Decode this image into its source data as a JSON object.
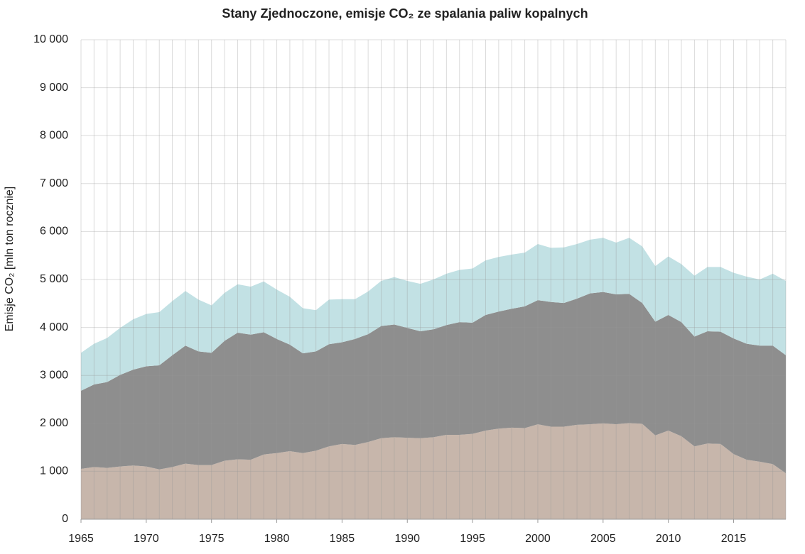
{
  "chart_data": {
    "type": "stacked_area",
    "title": "Stany Zjednoczone, emisje CO₂ ze spalania paliw kopalnych",
    "y_label": "Emisje CO₂ [mln ton rocznie]",
    "x": [
      1965,
      1966,
      1967,
      1968,
      1969,
      1970,
      1971,
      1972,
      1973,
      1974,
      1975,
      1976,
      1977,
      1978,
      1979,
      1980,
      1981,
      1982,
      1983,
      1984,
      1985,
      1986,
      1987,
      1988,
      1989,
      1990,
      1991,
      1992,
      1993,
      1994,
      1995,
      1996,
      1997,
      1998,
      1999,
      2000,
      2001,
      2002,
      2003,
      2004,
      2005,
      2006,
      2007,
      2008,
      2009,
      2010,
      2011,
      2012,
      2013,
      2014,
      2015,
      2016,
      2017,
      2018,
      2019
    ],
    "xlim": [
      1965,
      2019
    ],
    "xticks": [
      1965,
      1970,
      1975,
      1980,
      1985,
      1990,
      1995,
      2000,
      2005,
      2010,
      2015
    ],
    "ylim": [
      0,
      10000
    ],
    "yticks": [
      0,
      {
        "value": 1000,
        "label": "1 000"
      },
      {
        "value": 2000,
        "label": "2 000"
      },
      {
        "value": 3000,
        "label": "3 000"
      },
      {
        "value": 4000,
        "label": "4 000"
      },
      {
        "value": 5000,
        "label": "5 000"
      },
      {
        "value": 6000,
        "label": "6 000"
      },
      {
        "value": 7000,
        "label": "7 000"
      },
      {
        "value": 8000,
        "label": "8 000"
      },
      {
        "value": 9000,
        "label": "9 000"
      },
      {
        "value": 10000,
        "label": "10 000"
      }
    ],
    "grid": true,
    "series": [
      {
        "color": "#c7b6ab",
        "values": [
          1050,
          1090,
          1070,
          1100,
          1120,
          1100,
          1040,
          1090,
          1160,
          1130,
          1130,
          1220,
          1250,
          1240,
          1350,
          1380,
          1420,
          1380,
          1430,
          1520,
          1570,
          1550,
          1610,
          1690,
          1710,
          1700,
          1690,
          1710,
          1760,
          1760,
          1780,
          1850,
          1890,
          1910,
          1900,
          1980,
          1930,
          1930,
          1970,
          1980,
          2000,
          1980,
          2010,
          1990,
          1750,
          1850,
          1730,
          1520,
          1580,
          1570,
          1360,
          1240,
          1200,
          1150,
          960
        ]
      },
      {
        "color": "#8e8e8e",
        "values": [
          1630,
          1720,
          1790,
          1910,
          2000,
          2090,
          2170,
          2330,
          2460,
          2370,
          2340,
          2500,
          2640,
          2610,
          2550,
          2380,
          2220,
          2080,
          2070,
          2130,
          2120,
          2210,
          2250,
          2340,
          2350,
          2290,
          2230,
          2250,
          2290,
          2350,
          2320,
          2410,
          2440,
          2480,
          2540,
          2590,
          2600,
          2580,
          2630,
          2730,
          2740,
          2710,
          2690,
          2520,
          2370,
          2410,
          2380,
          2290,
          2340,
          2340,
          2410,
          2420,
          2420,
          2470,
          2460
        ]
      },
      {
        "color": "#c2e1e4",
        "values": [
          790,
          850,
          920,
          980,
          1050,
          1090,
          1110,
          1130,
          1140,
          1080,
          990,
          1000,
          1010,
          1000,
          1060,
          1030,
          1000,
          940,
          860,
          930,
          900,
          830,
          890,
          940,
          990,
          980,
          990,
          1040,
          1070,
          1090,
          1130,
          1140,
          1140,
          1130,
          1120,
          1170,
          1130,
          1160,
          1140,
          1120,
          1130,
          1080,
          1170,
          1180,
          1160,
          1220,
          1210,
          1270,
          1340,
          1350,
          1370,
          1400,
          1380,
          1500,
          1550
        ]
      }
    ]
  }
}
